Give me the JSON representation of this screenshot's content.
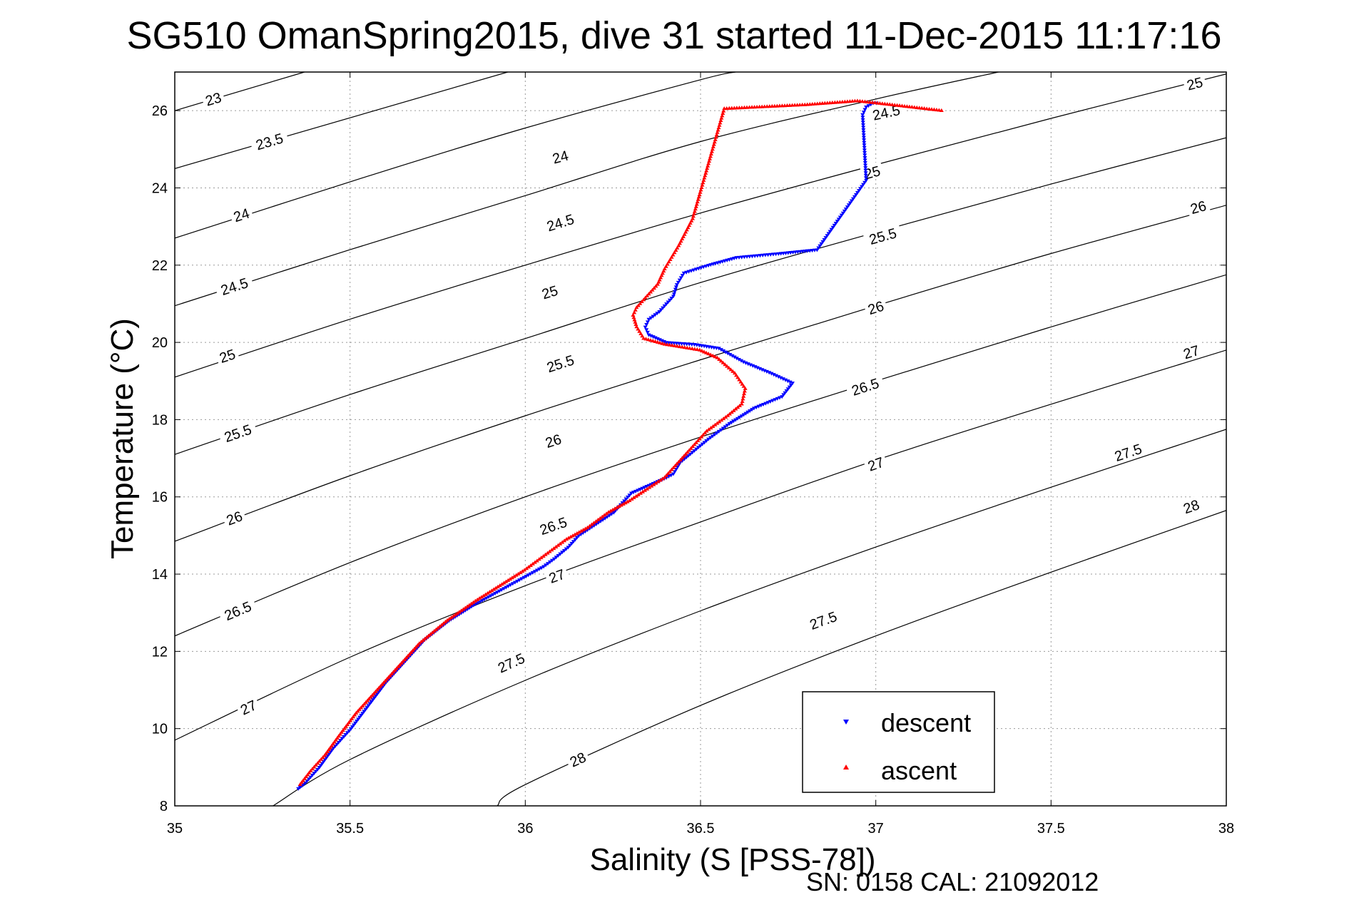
{
  "chart_data": {
    "type": "scatter",
    "title": "SG510 OmanSpring2015, dive 31 started 11-Dec-2015 11:17:16",
    "xlabel": "Salinity (S [PSS-78])",
    "ylabel": "Temperature (°C)",
    "xlim": [
      35,
      38
    ],
    "ylim": [
      8,
      27
    ],
    "x_ticks": [
      35,
      35.5,
      36,
      36.5,
      37,
      37.5,
      38
    ],
    "x_tick_labels": [
      "35",
      "35.5",
      "36",
      "36.5",
      "37",
      "37.5",
      "38"
    ],
    "y_ticks": [
      8,
      10,
      12,
      14,
      16,
      18,
      20,
      22,
      24,
      26
    ],
    "y_tick_labels": [
      "8",
      "10",
      "12",
      "14",
      "16",
      "18",
      "20",
      "22",
      "24",
      "26"
    ],
    "grid": true,
    "legend_position": "bottom-right",
    "footer": "SN: 0158  CAL: 21092012",
    "density_contours": [
      {
        "label": "23",
        "points": [
          [
            35,
            26.0
          ],
          [
            35.37,
            27.0
          ]
        ],
        "label_at": [
          35.11,
          26.3
        ]
      },
      {
        "label": "23.5",
        "points": [
          [
            35,
            24.5
          ],
          [
            35.95,
            27.0
          ]
        ],
        "label_at": [
          35.27,
          25.2
        ]
      },
      {
        "label": "24",
        "points": [
          [
            35,
            22.7
          ],
          [
            35.55,
            24.3
          ],
          [
            36.0,
            25.55
          ],
          [
            36.5,
            26.8
          ],
          [
            36.6,
            27.0
          ]
        ],
        "label_at": [
          35.19,
          23.3
        ]
      },
      {
        "label": "24.5",
        "points": [
          [
            35,
            20.95
          ],
          [
            35.5,
            22.4
          ],
          [
            36.0,
            23.8
          ],
          [
            36.5,
            25.2
          ],
          [
            37.0,
            26.3
          ],
          [
            37.35,
            27.0
          ]
        ],
        "label_at": [
          35.17,
          21.45
        ]
      },
      {
        "label": "25",
        "points": [
          [
            35,
            19.1
          ],
          [
            35.5,
            20.6
          ],
          [
            36.0,
            22.0
          ],
          [
            36.5,
            23.35
          ],
          [
            37.0,
            24.6
          ],
          [
            37.5,
            25.8
          ],
          [
            38.0,
            26.95
          ]
        ],
        "label_at": [
          35.15,
          19.65
        ]
      },
      {
        "label": "25.5",
        "points": [
          [
            35,
            17.1
          ],
          [
            35.5,
            18.65
          ],
          [
            36.0,
            20.1
          ],
          [
            36.5,
            21.55
          ],
          [
            37.0,
            22.85
          ],
          [
            37.5,
            24.1
          ],
          [
            38.0,
            25.3
          ]
        ],
        "label_at": [
          35.18,
          17.65
        ]
      },
      {
        "label": "26",
        "points": [
          [
            35,
            14.85
          ],
          [
            35.5,
            16.55
          ],
          [
            36.0,
            18.1
          ],
          [
            36.5,
            19.55
          ],
          [
            37.0,
            20.95
          ],
          [
            37.5,
            22.3
          ],
          [
            38.0,
            23.55
          ]
        ],
        "label_at": [
          35.17,
          15.45
        ]
      },
      {
        "label": "26.5",
        "points": [
          [
            35,
            12.4
          ],
          [
            35.5,
            14.3
          ],
          [
            36.0,
            16.0
          ],
          [
            36.5,
            17.55
          ],
          [
            37.0,
            19.0
          ],
          [
            37.5,
            20.4
          ],
          [
            38.0,
            21.75
          ]
        ],
        "label_at": [
          35.18,
          13.05
        ]
      },
      {
        "label": "27",
        "points": [
          [
            35,
            9.7
          ],
          [
            35.5,
            11.85
          ],
          [
            36.0,
            13.7
          ],
          [
            36.5,
            15.35
          ],
          [
            37.0,
            16.95
          ],
          [
            37.5,
            18.4
          ],
          [
            38.0,
            19.8
          ]
        ],
        "label_at": [
          35.21,
          10.55
        ]
      },
      {
        "label": "27.5",
        "points": [
          [
            35.28,
            8.0
          ],
          [
            35.5,
            9.2
          ],
          [
            36.0,
            11.25
          ],
          [
            36.5,
            13.05
          ],
          [
            37.0,
            14.7
          ],
          [
            37.5,
            16.25
          ],
          [
            38.0,
            17.75
          ]
        ],
        "label_at": [
          35.96,
          11.7
        ]
      },
      {
        "label": "28",
        "points": [
          [
            35.92,
            8.0
          ],
          [
            36.0,
            8.55
          ],
          [
            36.5,
            10.6
          ],
          [
            37.0,
            12.4
          ],
          [
            37.5,
            14.05
          ],
          [
            38.0,
            15.65
          ]
        ],
        "label_at": [
          36.15,
          9.2
        ]
      }
    ],
    "extra_contour_labels": [
      {
        "label": "24",
        "at": [
          36.1,
          24.8
        ]
      },
      {
        "label": "24.5",
        "at": [
          36.1,
          23.1
        ]
      },
      {
        "label": "25",
        "at": [
          36.07,
          21.3
        ]
      },
      {
        "label": "25.5",
        "at": [
          36.1,
          19.45
        ]
      },
      {
        "label": "26",
        "at": [
          36.08,
          17.45
        ]
      },
      {
        "label": "26.5",
        "at": [
          36.08,
          15.25
        ]
      },
      {
        "label": "27",
        "at": [
          36.09,
          13.95
        ]
      },
      {
        "label": "27.5",
        "at": [
          36.85,
          12.8
        ]
      },
      {
        "label": "28",
        "at": [
          37.02,
          10.55
        ]
      },
      {
        "label": "24.5",
        "at": [
          37.03,
          25.95
        ]
      },
      {
        "label": "25",
        "at": [
          36.99,
          24.4
        ]
      },
      {
        "label": "25.5",
        "at": [
          37.02,
          22.75
        ]
      },
      {
        "label": "26",
        "at": [
          37.0,
          20.9
        ]
      },
      {
        "label": "26.5",
        "at": [
          36.97,
          18.85
        ]
      },
      {
        "label": "27",
        "at": [
          37.0,
          16.85
        ]
      },
      {
        "label": "27.5",
        "at": [
          37.72,
          17.15
        ]
      },
      {
        "label": "28",
        "at": [
          37.9,
          15.75
        ]
      },
      {
        "label": "25",
        "at": [
          37.91,
          26.7
        ]
      },
      {
        "label": "26",
        "at": [
          37.92,
          23.5
        ]
      },
      {
        "label": "27",
        "at": [
          37.9,
          19.75
        ]
      }
    ],
    "series": [
      {
        "name": "descent",
        "color": "#0000ff",
        "marker": "triangle-down",
        "points": [
          [
            37.0,
            26.2
          ],
          [
            36.99,
            26.2
          ],
          [
            36.97,
            26.1
          ],
          [
            36.96,
            25.9
          ],
          [
            36.97,
            24.2
          ],
          [
            36.83,
            22.4
          ],
          [
            36.72,
            22.3
          ],
          [
            36.66,
            22.25
          ],
          [
            36.6,
            22.2
          ],
          [
            36.52,
            22.0
          ],
          [
            36.45,
            21.8
          ],
          [
            36.43,
            21.5
          ],
          [
            36.42,
            21.2
          ],
          [
            36.4,
            21.0
          ],
          [
            36.38,
            20.8
          ],
          [
            36.35,
            20.6
          ],
          [
            36.34,
            20.4
          ],
          [
            36.35,
            20.2
          ],
          [
            36.4,
            20.0
          ],
          [
            36.48,
            19.95
          ],
          [
            36.55,
            19.85
          ],
          [
            36.62,
            19.5
          ],
          [
            36.7,
            19.2
          ],
          [
            36.76,
            18.95
          ],
          [
            36.73,
            18.6
          ],
          [
            36.65,
            18.3
          ],
          [
            36.58,
            17.9
          ],
          [
            36.52,
            17.5
          ],
          [
            36.48,
            17.2
          ],
          [
            36.44,
            16.9
          ],
          [
            36.42,
            16.6
          ],
          [
            36.4,
            16.5
          ],
          [
            36.35,
            16.3
          ],
          [
            36.3,
            16.1
          ],
          [
            36.28,
            15.9
          ],
          [
            36.25,
            15.6
          ],
          [
            36.2,
            15.3
          ],
          [
            36.15,
            15.0
          ],
          [
            36.12,
            14.7
          ],
          [
            36.08,
            14.4
          ],
          [
            36.05,
            14.2
          ],
          [
            36.0,
            13.95
          ],
          [
            35.93,
            13.6
          ],
          [
            35.85,
            13.2
          ],
          [
            35.78,
            12.8
          ],
          [
            35.71,
            12.3
          ],
          [
            35.66,
            11.8
          ],
          [
            35.6,
            11.2
          ],
          [
            35.55,
            10.6
          ],
          [
            35.5,
            10.0
          ],
          [
            35.45,
            9.5
          ],
          [
            35.41,
            9.0
          ],
          [
            35.37,
            8.6
          ],
          [
            35.35,
            8.45
          ]
        ]
      },
      {
        "name": "ascent",
        "color": "#ff0000",
        "marker": "triangle-up",
        "points": [
          [
            37.19,
            26.0
          ],
          [
            37.0,
            26.2
          ],
          [
            36.95,
            26.25
          ],
          [
            36.8,
            26.15
          ],
          [
            36.57,
            26.05
          ],
          [
            36.48,
            23.2
          ],
          [
            36.44,
            22.5
          ],
          [
            36.42,
            22.2
          ],
          [
            36.4,
            21.9
          ],
          [
            36.38,
            21.5
          ],
          [
            36.35,
            21.2
          ],
          [
            36.32,
            20.9
          ],
          [
            36.31,
            20.7
          ],
          [
            36.32,
            20.4
          ],
          [
            36.34,
            20.1
          ],
          [
            36.4,
            19.95
          ],
          [
            36.5,
            19.8
          ],
          [
            36.55,
            19.6
          ],
          [
            36.6,
            19.2
          ],
          [
            36.63,
            18.8
          ],
          [
            36.62,
            18.4
          ],
          [
            36.58,
            18.1
          ],
          [
            36.52,
            17.7
          ],
          [
            36.48,
            17.3
          ],
          [
            36.44,
            16.9
          ],
          [
            36.4,
            16.5
          ],
          [
            36.35,
            16.2
          ],
          [
            36.3,
            15.9
          ],
          [
            36.24,
            15.6
          ],
          [
            36.18,
            15.2
          ],
          [
            36.12,
            14.9
          ],
          [
            36.06,
            14.5
          ],
          [
            36.0,
            14.1
          ],
          [
            35.93,
            13.7
          ],
          [
            35.86,
            13.3
          ],
          [
            35.78,
            12.8
          ],
          [
            35.7,
            12.2
          ],
          [
            35.64,
            11.6
          ],
          [
            35.58,
            11.0
          ],
          [
            35.52,
            10.4
          ],
          [
            35.47,
            9.8
          ],
          [
            35.43,
            9.3
          ],
          [
            35.39,
            8.9
          ],
          [
            35.36,
            8.55
          ]
        ]
      }
    ]
  }
}
